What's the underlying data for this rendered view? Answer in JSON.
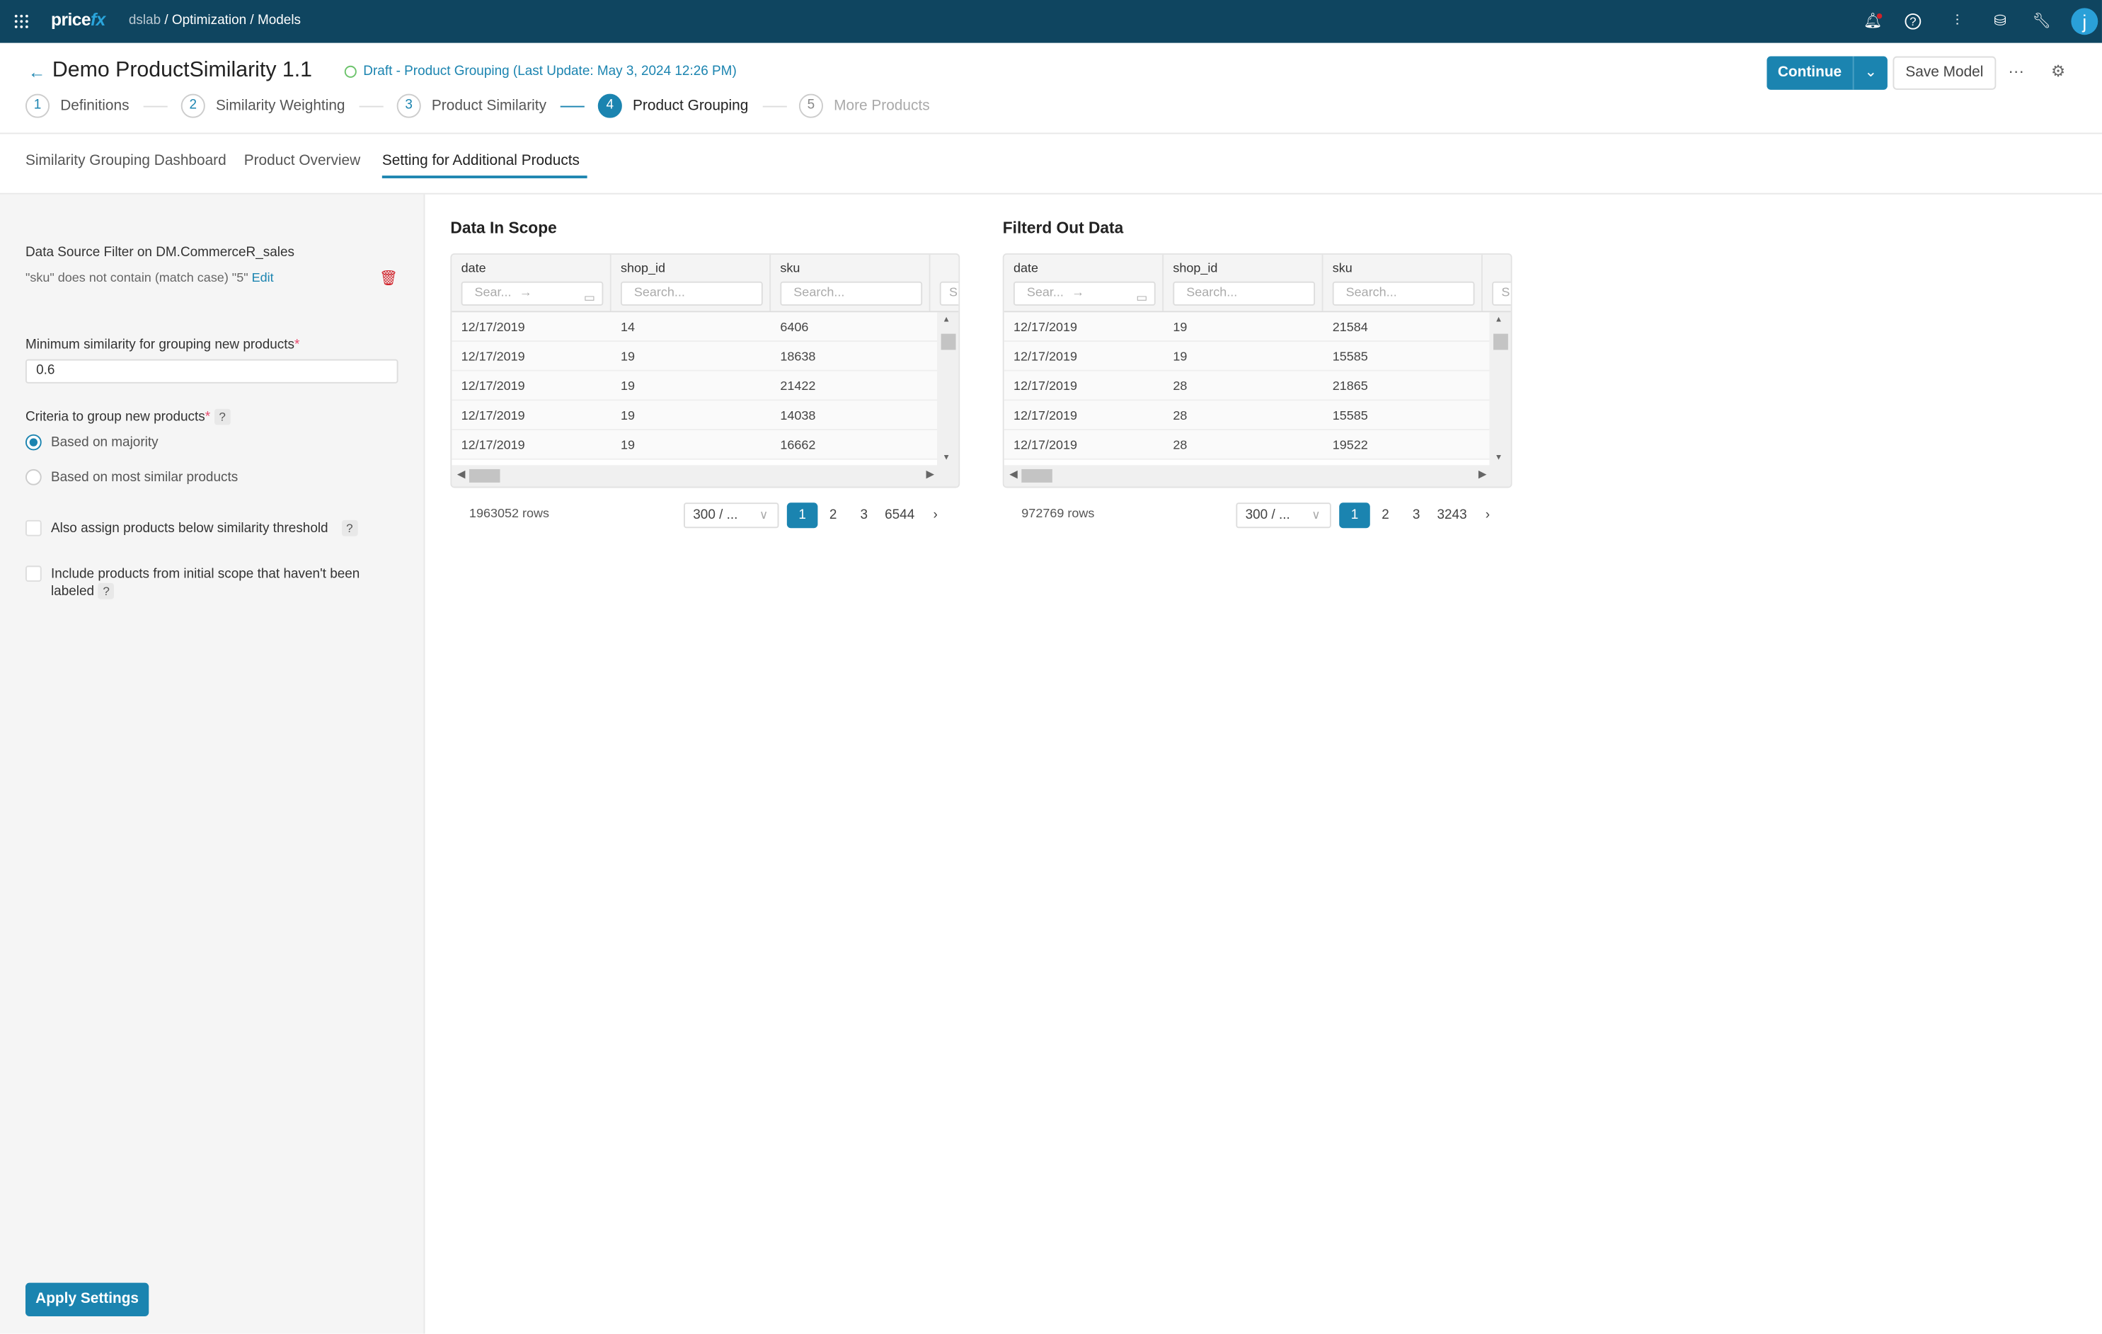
{
  "topbar": {
    "logo": "pricefx",
    "breadcrumb_root": "dslab",
    "breadcrumb_rest": "/ Optimization / Models",
    "avatar": "j"
  },
  "header": {
    "title": "Demo ProductSimilarity 1.1",
    "status": "Draft - Product Grouping (Last Update: May 3, 2024 12:26 PM)",
    "continue": "Continue",
    "save": "Save Model",
    "more": "···"
  },
  "steps": [
    {
      "n": "1",
      "label": "Definitions"
    },
    {
      "n": "2",
      "label": "Similarity Weighting"
    },
    {
      "n": "3",
      "label": "Product Similarity"
    },
    {
      "n": "4",
      "label": "Product Grouping"
    },
    {
      "n": "5",
      "label": "More Products"
    }
  ],
  "tabs": [
    "Similarity Grouping Dashboard",
    "Product Overview",
    "Setting for Additional Products"
  ],
  "left": {
    "filter_title": "Data Source Filter on DM.CommerceR_sales",
    "filter_text": "\"sku\" does not contain (match case) \"5\"",
    "edit": "Edit",
    "min_label": "Minimum similarity for grouping new products",
    "min_value": "0.6",
    "criteria_label": "Criteria to group new products",
    "opt1": "Based on majority",
    "opt2": "Based on most similar products",
    "chk1": "Also assign products below similarity threshold",
    "chk2a": "Include products from initial scope that haven't been",
    "chk2b": "labeled",
    "req": "*",
    "help": "?",
    "apply": "Apply Settings"
  },
  "tables": [
    {
      "title": "Data In Scope",
      "cols": [
        "date",
        "shop_id",
        "sku"
      ],
      "date_ph": "Sear...",
      "ph": "Search...",
      "partial_ph": "S",
      "rows": [
        [
          "12/17/2019",
          "14",
          "6406"
        ],
        [
          "12/17/2019",
          "19",
          "18638"
        ],
        [
          "12/17/2019",
          "19",
          "21422"
        ],
        [
          "12/17/2019",
          "19",
          "14038"
        ],
        [
          "12/17/2019",
          "19",
          "16662"
        ]
      ],
      "row_count": "1963052 rows",
      "page_size": "300 / ...",
      "pages": [
        "1",
        "2",
        "3",
        "6544"
      ]
    },
    {
      "title": "Filterd Out Data",
      "cols": [
        "date",
        "shop_id",
        "sku"
      ],
      "date_ph": "Sear...",
      "ph": "Search...",
      "partial_ph": "S",
      "rows": [
        [
          "12/17/2019",
          "19",
          "21584"
        ],
        [
          "12/17/2019",
          "19",
          "15585"
        ],
        [
          "12/17/2019",
          "28",
          "21865"
        ],
        [
          "12/17/2019",
          "28",
          "15585"
        ],
        [
          "12/17/2019",
          "28",
          "19522"
        ]
      ],
      "row_count": "972769 rows",
      "page_size": "300 / ...",
      "pages": [
        "1",
        "2",
        "3",
        "3243"
      ]
    }
  ],
  "colors": {
    "topbar": "#0f4560",
    "accent": "#1b84b0",
    "danger": "#d0222a"
  }
}
